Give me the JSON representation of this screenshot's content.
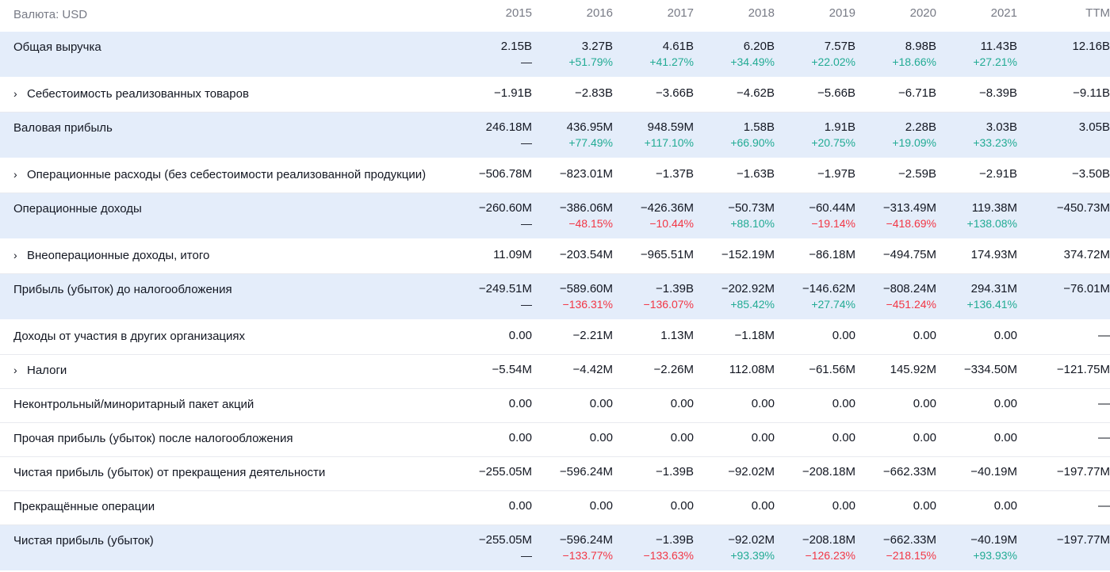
{
  "currency_label": "Валюта: USD",
  "years": [
    "2015",
    "2016",
    "2017",
    "2018",
    "2019",
    "2020",
    "2021",
    "TTM"
  ],
  "rows": [
    {
      "label": "Общая выручка",
      "expandable": false,
      "highlight": true,
      "values": [
        "2.15B",
        "3.27B",
        "4.61B",
        "6.20B",
        "7.57B",
        "8.98B",
        "11.43B",
        "12.16B"
      ],
      "pcts": [
        "—",
        "+51.79%",
        "+41.27%",
        "+34.49%",
        "+22.02%",
        "+18.66%",
        "+27.21%",
        ""
      ]
    },
    {
      "label": "Себестоимость реализованных товаров",
      "expandable": true,
      "highlight": false,
      "values": [
        "−1.91B",
        "−2.83B",
        "−3.66B",
        "−4.62B",
        "−5.66B",
        "−6.71B",
        "−8.39B",
        "−9.11B"
      ]
    },
    {
      "label": "Валовая прибыль",
      "expandable": false,
      "highlight": true,
      "values": [
        "246.18M",
        "436.95M",
        "948.59M",
        "1.58B",
        "1.91B",
        "2.28B",
        "3.03B",
        "3.05B"
      ],
      "pcts": [
        "—",
        "+77.49%",
        "+117.10%",
        "+66.90%",
        "+20.75%",
        "+19.09%",
        "+33.23%",
        ""
      ]
    },
    {
      "label": "Операционные расходы (без себестоимости реализованной продукции)",
      "expandable": true,
      "highlight": false,
      "values": [
        "−506.78M",
        "−823.01M",
        "−1.37B",
        "−1.63B",
        "−1.97B",
        "−2.59B",
        "−2.91B",
        "−3.50B"
      ]
    },
    {
      "label": "Операционные доходы",
      "expandable": false,
      "highlight": true,
      "values": [
        "−260.60M",
        "−386.06M",
        "−426.36M",
        "−50.73M",
        "−60.44M",
        "−313.49M",
        "119.38M",
        "−450.73M"
      ],
      "pcts": [
        "—",
        "−48.15%",
        "−10.44%",
        "+88.10%",
        "−19.14%",
        "−418.69%",
        "+138.08%",
        ""
      ]
    },
    {
      "label": "Внеоперационные доходы, итого",
      "expandable": true,
      "highlight": false,
      "values": [
        "11.09M",
        "−203.54M",
        "−965.51M",
        "−152.19M",
        "−86.18M",
        "−494.75M",
        "174.93M",
        "374.72M"
      ]
    },
    {
      "label": "Прибыль (убыток) до налогообложения",
      "expandable": false,
      "highlight": true,
      "values": [
        "−249.51M",
        "−589.60M",
        "−1.39B",
        "−202.92M",
        "−146.62M",
        "−808.24M",
        "294.31M",
        "−76.01M"
      ],
      "pcts": [
        "—",
        "−136.31%",
        "−136.07%",
        "+85.42%",
        "+27.74%",
        "−451.24%",
        "+136.41%",
        ""
      ]
    },
    {
      "label": "Доходы от участия в других организациях",
      "expandable": false,
      "highlight": false,
      "values": [
        "0.00",
        "−2.21M",
        "1.13M",
        "−1.18M",
        "0.00",
        "0.00",
        "0.00",
        "—"
      ]
    },
    {
      "label": "Налоги",
      "expandable": true,
      "highlight": false,
      "values": [
        "−5.54M",
        "−4.42M",
        "−2.26M",
        "112.08M",
        "−61.56M",
        "145.92M",
        "−334.50M",
        "−121.75M"
      ]
    },
    {
      "label": "Неконтрольный/миноритарный пакет акций",
      "expandable": false,
      "highlight": false,
      "values": [
        "0.00",
        "0.00",
        "0.00",
        "0.00",
        "0.00",
        "0.00",
        "0.00",
        "—"
      ]
    },
    {
      "label": "Прочая прибыль (убыток) после налогообложения",
      "expandable": false,
      "highlight": false,
      "values": [
        "0.00",
        "0.00",
        "0.00",
        "0.00",
        "0.00",
        "0.00",
        "0.00",
        "—"
      ]
    },
    {
      "label": "Чистая прибыль (убыток) от прекращения деятельности",
      "expandable": false,
      "highlight": false,
      "values": [
        "−255.05M",
        "−596.24M",
        "−1.39B",
        "−92.02M",
        "−208.18M",
        "−662.33M",
        "−40.19M",
        "−197.77M"
      ]
    },
    {
      "label": "Прекращённые операции",
      "expandable": false,
      "highlight": false,
      "values": [
        "0.00",
        "0.00",
        "0.00",
        "0.00",
        "0.00",
        "0.00",
        "0.00",
        "—"
      ]
    },
    {
      "label": "Чистая прибыль (убыток)",
      "expandable": false,
      "highlight": true,
      "values": [
        "−255.05M",
        "−596.24M",
        "−1.39B",
        "−92.02M",
        "−208.18M",
        "−662.33M",
        "−40.19M",
        "−197.77M"
      ],
      "pcts": [
        "—",
        "−133.77%",
        "−133.63%",
        "+93.39%",
        "−126.23%",
        "−218.15%",
        "+93.93%",
        ""
      ]
    }
  ],
  "colors": {
    "highlight_bg": "#e4edfa",
    "positive": "#22ab94",
    "negative": "#f23645",
    "muted": "#787b86"
  }
}
